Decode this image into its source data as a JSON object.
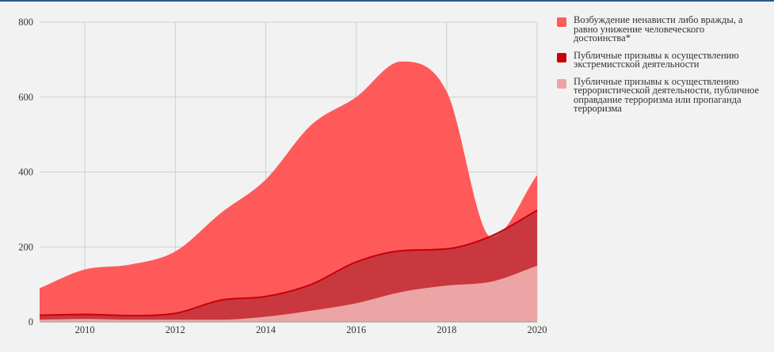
{
  "chart_data": {
    "type": "area",
    "x": [
      2009,
      2010,
      2011,
      2012,
      2013,
      2014,
      2015,
      2016,
      2017,
      2018,
      2019,
      2020
    ],
    "x_ticks": [
      "2010",
      "2012",
      "2014",
      "2016",
      "2018",
      "2020"
    ],
    "y_ticks": [
      "0",
      "200",
      "400",
      "600",
      "800"
    ],
    "xlim": [
      2009,
      2020
    ],
    "ylim": [
      0,
      800
    ],
    "grid": true,
    "legend_position": "right",
    "stacked": false,
    "series": [
      {
        "name": "Возбуждение ненависти либо вражды, а равно унижение человеческого достоинства*",
        "values": [
          90,
          140,
          153,
          188,
          290,
          380,
          525,
          600,
          695,
          615,
          225,
          392
        ],
        "color": "#ff5a5a"
      },
      {
        "name": "Публичные призывы к осуществлению экстремистской деятельности",
        "values": [
          18,
          20,
          17,
          23,
          58,
          68,
          100,
          160,
          190,
          195,
          230,
          298
        ],
        "color": "#c8000a"
      },
      {
        "name": "Публичные призывы к осуществлению террористической деятельности, публичное оправдание терроризма или пропаганда терроризма",
        "values": [
          6,
          8,
          6,
          6,
          6,
          14,
          30,
          50,
          80,
          97,
          108,
          150
        ],
        "color": "#eda4a4"
      }
    ]
  }
}
